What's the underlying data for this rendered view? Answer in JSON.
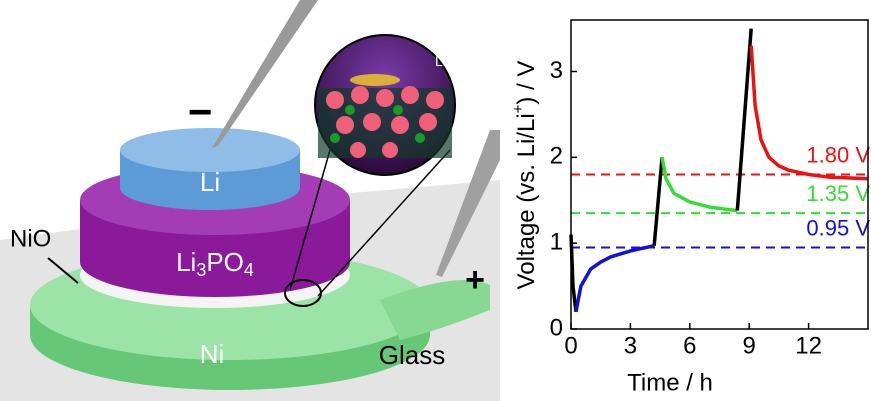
{
  "illustration": {
    "minus": "−",
    "plus": "+",
    "li": "Li",
    "li3po4": [
      "Li",
      "3",
      "PO",
      "4"
    ],
    "nio": "NiO",
    "ni": "Ni",
    "glass": "Glass",
    "li_ion": [
      "Li",
      "+"
    ]
  },
  "chart_data": {
    "type": "line",
    "xlabel": "Time / h",
    "ylabel": [
      "Voltage (vs. Li/Li",
      "+",
      ") / V"
    ],
    "xlim": [
      0,
      15
    ],
    "xticks": [
      0,
      3,
      6,
      9,
      12
    ],
    "ylim": [
      0,
      3.6
    ],
    "yticks": [
      0,
      1,
      2,
      3
    ],
    "series": [
      {
        "color": "#000000",
        "x": [
          0,
          0.1,
          0.25
        ],
        "values": [
          1.1,
          0.5,
          0.2
        ]
      },
      {
        "color": "#1010e0",
        "x": [
          0.25,
          0.5,
          1,
          1.5,
          2,
          3,
          4.2
        ],
        "values": [
          0.2,
          0.5,
          0.7,
          0.78,
          0.84,
          0.91,
          0.97
        ]
      },
      {
        "color": "#000000",
        "x": [
          4.2,
          4.6
        ],
        "values": [
          0.97,
          2.0
        ]
      },
      {
        "color": "#33dd33",
        "x": [
          4.6,
          4.8,
          5.2,
          6,
          7,
          8,
          8.4
        ],
        "values": [
          2.0,
          1.75,
          1.58,
          1.48,
          1.42,
          1.39,
          1.38
        ]
      },
      {
        "color": "#000000",
        "x": [
          8.4,
          9.1
        ],
        "values": [
          1.38,
          3.5
        ]
      },
      {
        "color": "#ee1111",
        "x": [
          9.1,
          9.3,
          9.6,
          10,
          10.5,
          11,
          12,
          13,
          14,
          15
        ],
        "values": [
          3.3,
          2.6,
          2.2,
          2.0,
          1.9,
          1.85,
          1.8,
          1.77,
          1.76,
          1.75
        ]
      }
    ],
    "reference_lines": [
      {
        "value": 0.95,
        "label": "0.95 V",
        "color": "#1010e0"
      },
      {
        "value": 1.35,
        "label": "1.35 V",
        "color": "#33dd33"
      },
      {
        "value": 1.8,
        "label": "1.80 V",
        "color": "#ee1111"
      }
    ]
  }
}
